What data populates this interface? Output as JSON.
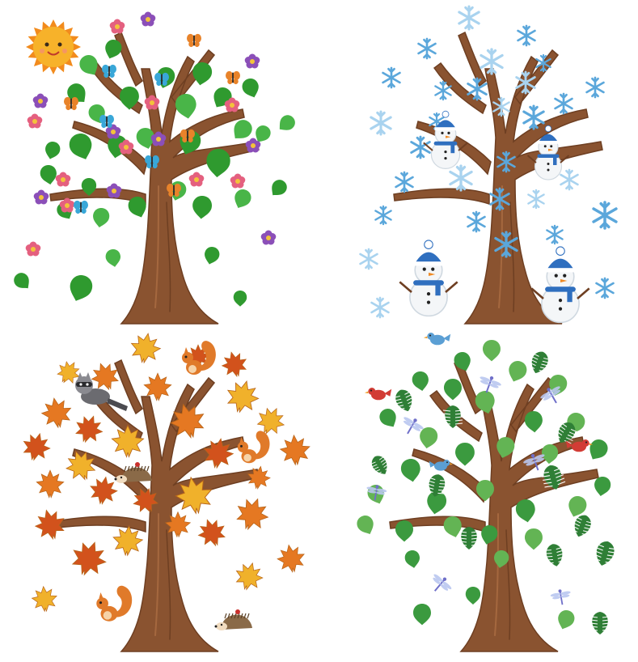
{
  "scene": {
    "description": "",
    "background": "#ffffff",
    "colors": {
      "trunk": "#8a5330",
      "trunk_dark": "#6e3f22",
      "trunk_light": "#a5683f",
      "spring_leaf": "#2f9a2f",
      "spring_leaf_light": "#49b548",
      "flower_purple": "#8b4fb8",
      "flower_pink": "#e4607f",
      "flower_center": "#f3c33b",
      "sun": "#f7b22a",
      "sun_ray": "#f28b1d",
      "butterfly": "#39a7d8",
      "butterfly_orange": "#e8832a",
      "snowflake": "#5ba7db",
      "snowflake_light": "#a9d3ef",
      "snowman_body": "#f4f6f8",
      "snowman_scarf": "#2f6fbf",
      "autumn_yellow": "#f0b12b",
      "autumn_orange": "#e57822",
      "autumn_red": "#d2521c",
      "squirrel": "#e07a2a",
      "raccoon": "#6b6b70",
      "hedgehog": "#8a6a48",
      "summer_leaf": "#3b9a3f",
      "summer_leaf_light": "#63b454",
      "monstera": "#2f7f36",
      "bird_blue": "#5b9fd4",
      "cardinal": "#d23c35",
      "dragonfly": "#6f6fc9"
    }
  },
  "panels": [
    {
      "season": "spring",
      "icon": "flower-icon"
    },
    {
      "season": "winter",
      "icon": "snowflake-icon"
    },
    {
      "season": "autumn",
      "icon": "maple-leaf-icon"
    },
    {
      "season": "summer",
      "icon": "leaf-icon"
    }
  ]
}
